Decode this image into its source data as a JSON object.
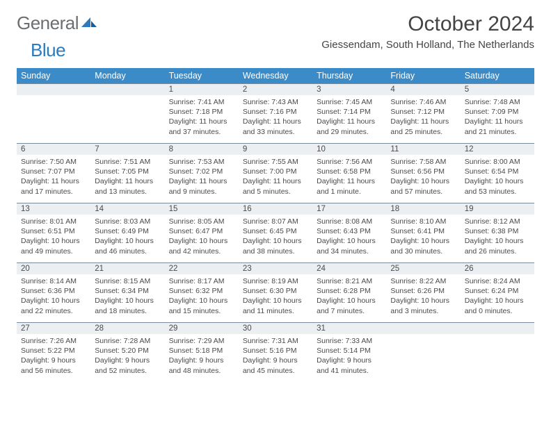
{
  "brand": {
    "part1": "General",
    "part2": "Blue"
  },
  "title": "October 2024",
  "location": "Giessendam, South Holland, The Netherlands",
  "colors": {
    "header_bg": "#3b8bc9",
    "header_fg": "#ffffff",
    "dayhead_bg": "#eceff1",
    "dayhead_border": "#7a8a99",
    "text": "#444444",
    "brand_gray": "#6b6f72",
    "brand_blue": "#2c7bbf"
  },
  "days_of_week": [
    "Sunday",
    "Monday",
    "Tuesday",
    "Wednesday",
    "Thursday",
    "Friday",
    "Saturday"
  ],
  "weeks": [
    [
      null,
      null,
      {
        "n": "1",
        "sunrise": "7:41 AM",
        "sunset": "7:18 PM",
        "daylight": "11 hours and 37 minutes."
      },
      {
        "n": "2",
        "sunrise": "7:43 AM",
        "sunset": "7:16 PM",
        "daylight": "11 hours and 33 minutes."
      },
      {
        "n": "3",
        "sunrise": "7:45 AM",
        "sunset": "7:14 PM",
        "daylight": "11 hours and 29 minutes."
      },
      {
        "n": "4",
        "sunrise": "7:46 AM",
        "sunset": "7:12 PM",
        "daylight": "11 hours and 25 minutes."
      },
      {
        "n": "5",
        "sunrise": "7:48 AM",
        "sunset": "7:09 PM",
        "daylight": "11 hours and 21 minutes."
      }
    ],
    [
      {
        "n": "6",
        "sunrise": "7:50 AM",
        "sunset": "7:07 PM",
        "daylight": "11 hours and 17 minutes."
      },
      {
        "n": "7",
        "sunrise": "7:51 AM",
        "sunset": "7:05 PM",
        "daylight": "11 hours and 13 minutes."
      },
      {
        "n": "8",
        "sunrise": "7:53 AM",
        "sunset": "7:02 PM",
        "daylight": "11 hours and 9 minutes."
      },
      {
        "n": "9",
        "sunrise": "7:55 AM",
        "sunset": "7:00 PM",
        "daylight": "11 hours and 5 minutes."
      },
      {
        "n": "10",
        "sunrise": "7:56 AM",
        "sunset": "6:58 PM",
        "daylight": "11 hours and 1 minute."
      },
      {
        "n": "11",
        "sunrise": "7:58 AM",
        "sunset": "6:56 PM",
        "daylight": "10 hours and 57 minutes."
      },
      {
        "n": "12",
        "sunrise": "8:00 AM",
        "sunset": "6:54 PM",
        "daylight": "10 hours and 53 minutes."
      }
    ],
    [
      {
        "n": "13",
        "sunrise": "8:01 AM",
        "sunset": "6:51 PM",
        "daylight": "10 hours and 49 minutes."
      },
      {
        "n": "14",
        "sunrise": "8:03 AM",
        "sunset": "6:49 PM",
        "daylight": "10 hours and 46 minutes."
      },
      {
        "n": "15",
        "sunrise": "8:05 AM",
        "sunset": "6:47 PM",
        "daylight": "10 hours and 42 minutes."
      },
      {
        "n": "16",
        "sunrise": "8:07 AM",
        "sunset": "6:45 PM",
        "daylight": "10 hours and 38 minutes."
      },
      {
        "n": "17",
        "sunrise": "8:08 AM",
        "sunset": "6:43 PM",
        "daylight": "10 hours and 34 minutes."
      },
      {
        "n": "18",
        "sunrise": "8:10 AM",
        "sunset": "6:41 PM",
        "daylight": "10 hours and 30 minutes."
      },
      {
        "n": "19",
        "sunrise": "8:12 AM",
        "sunset": "6:38 PM",
        "daylight": "10 hours and 26 minutes."
      }
    ],
    [
      {
        "n": "20",
        "sunrise": "8:14 AM",
        "sunset": "6:36 PM",
        "daylight": "10 hours and 22 minutes."
      },
      {
        "n": "21",
        "sunrise": "8:15 AM",
        "sunset": "6:34 PM",
        "daylight": "10 hours and 18 minutes."
      },
      {
        "n": "22",
        "sunrise": "8:17 AM",
        "sunset": "6:32 PM",
        "daylight": "10 hours and 15 minutes."
      },
      {
        "n": "23",
        "sunrise": "8:19 AM",
        "sunset": "6:30 PM",
        "daylight": "10 hours and 11 minutes."
      },
      {
        "n": "24",
        "sunrise": "8:21 AM",
        "sunset": "6:28 PM",
        "daylight": "10 hours and 7 minutes."
      },
      {
        "n": "25",
        "sunrise": "8:22 AM",
        "sunset": "6:26 PM",
        "daylight": "10 hours and 3 minutes."
      },
      {
        "n": "26",
        "sunrise": "8:24 AM",
        "sunset": "6:24 PM",
        "daylight": "10 hours and 0 minutes."
      }
    ],
    [
      {
        "n": "27",
        "sunrise": "7:26 AM",
        "sunset": "5:22 PM",
        "daylight": "9 hours and 56 minutes."
      },
      {
        "n": "28",
        "sunrise": "7:28 AM",
        "sunset": "5:20 PM",
        "daylight": "9 hours and 52 minutes."
      },
      {
        "n": "29",
        "sunrise": "7:29 AM",
        "sunset": "5:18 PM",
        "daylight": "9 hours and 48 minutes."
      },
      {
        "n": "30",
        "sunrise": "7:31 AM",
        "sunset": "5:16 PM",
        "daylight": "9 hours and 45 minutes."
      },
      {
        "n": "31",
        "sunrise": "7:33 AM",
        "sunset": "5:14 PM",
        "daylight": "9 hours and 41 minutes."
      },
      null,
      null
    ]
  ],
  "labels": {
    "sunrise": "Sunrise:",
    "sunset": "Sunset:",
    "daylight": "Daylight:"
  }
}
